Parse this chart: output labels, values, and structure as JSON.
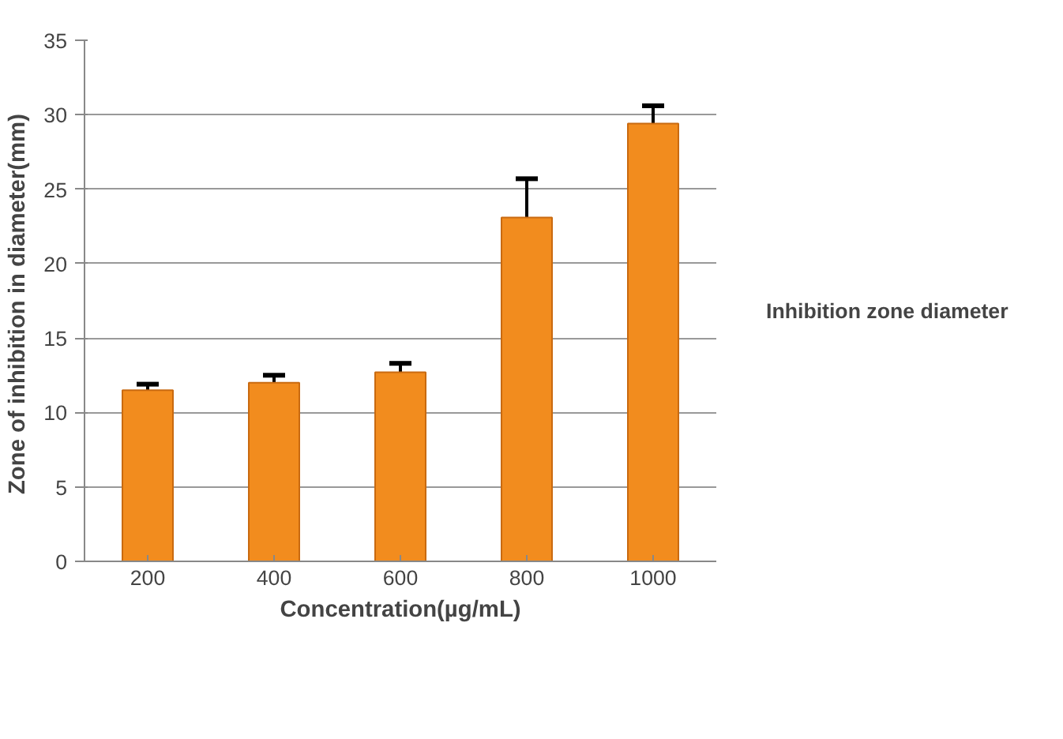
{
  "chart_data": {
    "type": "bar",
    "xlabel": "Concentration(µg/mL)",
    "ylabel": "Zone of inhibition  in diameter(mm)",
    "categories": [
      "200",
      "400",
      "600",
      "800",
      "1000"
    ],
    "series": [
      {
        "name": "Inhibition zone diameter",
        "color": "#f28c1e",
        "values": [
          11.5,
          12.0,
          12.7,
          23.1,
          29.4
        ],
        "errors": [
          [
            11.5,
            11.9
          ],
          [
            12.0,
            12.5
          ],
          [
            12.7,
            13.3
          ],
          [
            23.1,
            25.7
          ],
          [
            29.4,
            30.6
          ]
        ]
      }
    ],
    "ylim": [
      0,
      35
    ],
    "yticks": [
      0,
      5,
      10,
      15,
      20,
      25,
      30,
      35
    ],
    "grid": "y",
    "legend": "right"
  }
}
